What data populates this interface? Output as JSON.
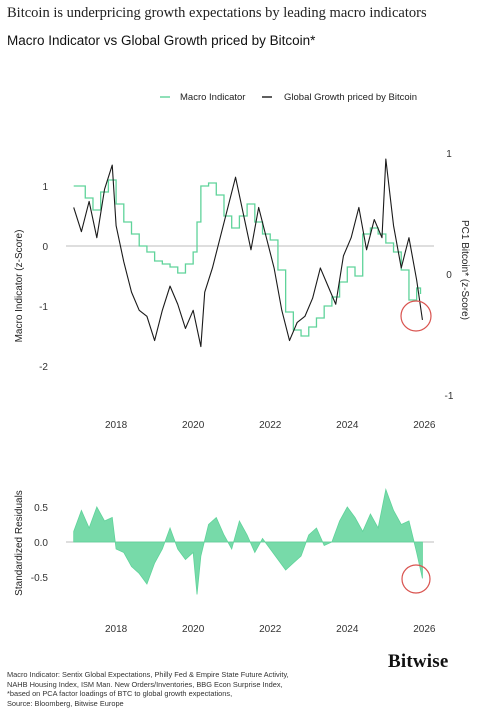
{
  "headline": "Bitcoin is underpricing growth expectations by leading macro indicators",
  "subtitle": "Macro Indicator vs Global Growth priced by Bitcoin*",
  "brand": "Bitwise",
  "footer": {
    "line1": "Macro Indicator: Sentix Global Expectations, Philly Fed & Empire State Future Activity,",
    "line2": "NAHB Housing Index, ISM Man. New Orders/Inventories, BBG Econ Surprise Index,",
    "line3": "*based on PCA factor loadings of BTC to global growth expectations,",
    "line4": "Source: Bloomberg, Bitwise Europe"
  },
  "colors": {
    "macro": "#5fd39a",
    "bitcoin": "#1a1a1a",
    "residual": "#5fd39a",
    "highlight": "#d9534f"
  },
  "chart_data": [
    {
      "type": "line",
      "title": "Macro Indicator vs Global Growth priced by Bitcoin*",
      "ylabel_left": "Macro Indicator (z-Score)",
      "ylabel_right": "PC1 Bitcoin* (z-Score)",
      "ylim_left": [
        -2,
        1.5
      ],
      "ylim_right": [
        -1,
        1
      ],
      "yticks_left": [
        "1",
        "0",
        "-1",
        "-2"
      ],
      "yticks_right": [
        "1",
        "0",
        "-1"
      ],
      "xticks": [
        "2018",
        "2020",
        "2022",
        "2024",
        "2026"
      ],
      "legend": {
        "placement": "top-right",
        "entries": [
          "Macro Indicator",
          "Global Growth priced by Bitcoin"
        ]
      },
      "series": [
        {
          "name": "Macro Indicator",
          "axis": "left",
          "x": [
            2016.9,
            2017.2,
            2017.4,
            2017.6,
            2017.8,
            2018.0,
            2018.2,
            2018.4,
            2018.6,
            2018.8,
            2019.0,
            2019.2,
            2019.4,
            2019.6,
            2019.8,
            2020.0,
            2020.1,
            2020.2,
            2020.4,
            2020.6,
            2020.8,
            2021.0,
            2021.2,
            2021.4,
            2021.6,
            2021.8,
            2022.0,
            2022.2,
            2022.4,
            2022.6,
            2022.8,
            2023.0,
            2023.2,
            2023.4,
            2023.6,
            2023.8,
            2024.0,
            2024.2,
            2024.4,
            2024.6,
            2024.8,
            2025.0,
            2025.2,
            2025.4,
            2025.6,
            2025.8,
            2025.9
          ],
          "values": [
            1.0,
            0.8,
            0.6,
            0.9,
            1.1,
            0.7,
            0.4,
            0.2,
            0.0,
            -0.1,
            -0.25,
            -0.3,
            -0.35,
            -0.45,
            -0.3,
            -0.1,
            0.4,
            1.0,
            1.05,
            0.85,
            0.5,
            0.3,
            0.5,
            0.7,
            0.4,
            0.2,
            0.1,
            -0.4,
            -1.1,
            -1.4,
            -1.5,
            -1.35,
            -1.2,
            -1.0,
            -0.85,
            -0.6,
            -0.35,
            -0.5,
            0.2,
            0.3,
            0.2,
            0.05,
            -0.1,
            -0.4,
            -0.9,
            -0.7,
            -0.8
          ]
        },
        {
          "name": "Global Growth priced by Bitcoin",
          "axis": "right",
          "x": [
            2016.9,
            2017.1,
            2017.3,
            2017.5,
            2017.7,
            2017.9,
            2018.0,
            2018.2,
            2018.4,
            2018.6,
            2018.8,
            2019.0,
            2019.2,
            2019.4,
            2019.6,
            2019.8,
            2020.0,
            2020.2,
            2020.3,
            2020.5,
            2020.7,
            2020.9,
            2021.1,
            2021.3,
            2021.5,
            2021.7,
            2021.9,
            2022.1,
            2022.3,
            2022.5,
            2022.7,
            2022.9,
            2023.1,
            2023.3,
            2023.5,
            2023.7,
            2023.9,
            2024.1,
            2024.3,
            2024.5,
            2024.7,
            2024.9,
            2025.0,
            2025.2,
            2025.4,
            2025.6,
            2025.8,
            2025.95
          ],
          "values": [
            0.55,
            0.35,
            0.6,
            0.3,
            0.7,
            0.9,
            0.4,
            0.1,
            -0.15,
            -0.3,
            -0.35,
            -0.55,
            -0.3,
            -0.1,
            -0.25,
            -0.45,
            -0.3,
            -0.6,
            -0.15,
            0.05,
            0.3,
            0.55,
            0.8,
            0.5,
            0.2,
            0.55,
            0.3,
            0.05,
            -0.3,
            -0.55,
            -0.4,
            -0.35,
            -0.2,
            0.05,
            -0.1,
            -0.25,
            0.15,
            0.3,
            0.55,
            0.2,
            0.45,
            0.3,
            0.95,
            0.4,
            0.05,
            0.3,
            -0.05,
            -0.38
          ]
        }
      ]
    },
    {
      "type": "area",
      "ylabel": "Standardized Residuals",
      "ylim": [
        -0.8,
        0.8
      ],
      "yticks": [
        "0.5",
        "0.0",
        "-0.5"
      ],
      "xticks": [
        "2018",
        "2020",
        "2022",
        "2024",
        "2026"
      ],
      "series": [
        {
          "x": [
            2016.9,
            2017.1,
            2017.3,
            2017.5,
            2017.7,
            2017.9,
            2018.0,
            2018.2,
            2018.4,
            2018.6,
            2018.8,
            2019.0,
            2019.2,
            2019.4,
            2019.6,
            2019.8,
            2020.0,
            2020.1,
            2020.2,
            2020.4,
            2020.6,
            2020.8,
            2021.0,
            2021.2,
            2021.4,
            2021.6,
            2021.8,
            2022.0,
            2022.2,
            2022.4,
            2022.6,
            2022.8,
            2023.0,
            2023.2,
            2023.4,
            2023.6,
            2023.8,
            2024.0,
            2024.2,
            2024.4,
            2024.6,
            2024.8,
            2025.0,
            2025.2,
            2025.4,
            2025.6,
            2025.8,
            2025.95
          ],
          "values": [
            0.15,
            0.45,
            0.2,
            0.5,
            0.3,
            0.35,
            -0.1,
            -0.15,
            -0.35,
            -0.45,
            -0.6,
            -0.3,
            -0.1,
            0.2,
            -0.1,
            -0.25,
            -0.15,
            -0.75,
            -0.2,
            0.25,
            0.35,
            0.1,
            -0.1,
            0.3,
            0.1,
            -0.15,
            0.05,
            -0.1,
            -0.25,
            -0.4,
            -0.3,
            -0.2,
            0.1,
            0.2,
            -0.05,
            0.0,
            0.3,
            0.5,
            0.35,
            0.15,
            0.4,
            0.2,
            0.75,
            0.45,
            0.25,
            0.3,
            -0.15,
            -0.52
          ]
        }
      ]
    }
  ]
}
